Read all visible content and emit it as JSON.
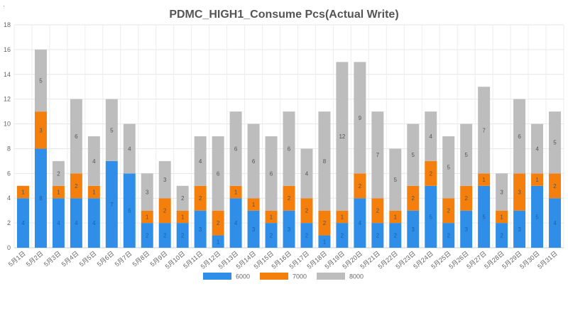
{
  "chart_data": {
    "type": "bar",
    "stacked": true,
    "title": "PDMC_HIGH1_Consume Pcs(Actual Write)",
    "xlabel": "",
    "ylabel": "",
    "ylim": [
      0,
      18
    ],
    "yticks": [
      0,
      2,
      4,
      6,
      8,
      10,
      12,
      14,
      16,
      18
    ],
    "grid": true,
    "legend_position": "bottom",
    "stray_mark": "·",
    "categories": [
      "5月1日",
      "5月2日",
      "5月3日",
      "5月4日",
      "5月5日",
      "5月6日",
      "5月7日",
      "5月8日",
      "5月9日",
      "5月10日",
      "5月11日",
      "5月12日",
      "5月13日",
      "5月14日",
      "5月15日",
      "5月16日",
      "5月17日",
      "5月18日",
      "5月19日",
      "5月20日",
      "5月21日",
      "5月22日",
      "5月23日",
      "5月24日",
      "5月25日",
      "5月26日",
      "5月27日",
      "5月28日",
      "5月29日",
      "5月30日",
      "5月31日"
    ],
    "series": [
      {
        "name": "6000",
        "color": "#2f8fe8",
        "values": [
          4,
          8,
          4,
          4,
          4,
          7,
          6,
          2,
          2,
          2,
          3,
          1,
          4,
          3,
          2,
          3,
          2,
          1,
          2,
          4,
          2,
          2,
          3,
          5,
          2,
          3,
          5,
          2,
          3,
          5,
          4
        ]
      },
      {
        "name": "7000",
        "color": "#f57f0c",
        "values": [
          1,
          3,
          1,
          2,
          1,
          0,
          0,
          1,
          2,
          1,
          2,
          2,
          1,
          1,
          1,
          2,
          2,
          2,
          1,
          2,
          2,
          1,
          2,
          2,
          2,
          2,
          1,
          1,
          3,
          1,
          2
        ]
      },
      {
        "name": "8000",
        "color": "#bdbdbd",
        "values": [
          0,
          5,
          2,
          6,
          4,
          5,
          4,
          3,
          3,
          2,
          4,
          6,
          6,
          6,
          6,
          6,
          4,
          8,
          12,
          9,
          7,
          5,
          5,
          4,
          5,
          5,
          7,
          3,
          6,
          4,
          5
        ]
      }
    ]
  }
}
